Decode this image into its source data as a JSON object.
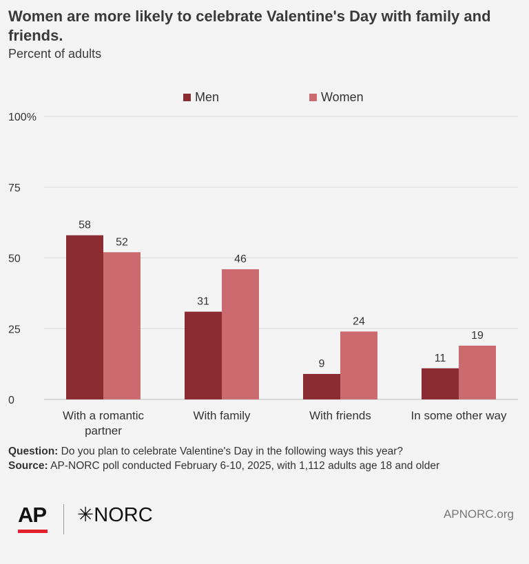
{
  "title": "Women are more likely to celebrate Valentine's Day with family and friends.",
  "subtitle": "Percent of adults",
  "notes": {
    "question_label": "Question:",
    "question_text": " Do you plan to celebrate Valentine's Day in the following ways this year?",
    "source_label": "Source:",
    "source_text": " AP-NORC poll conducted February 6-10, 2025, with 1,112 adults age 18 and older"
  },
  "footer": {
    "logo_ap": "AP",
    "logo_norc": "✳NORC",
    "url": "APNORC.org"
  },
  "colors": {
    "men": "#8b2c33",
    "women": "#cc6b6f",
    "grid": "#d9d9d9",
    "background": "#f4f4f4"
  },
  "chart_data": {
    "type": "bar",
    "categories": [
      "With a romantic partner",
      "With family",
      "With friends",
      "In some other way"
    ],
    "category_lines": [
      [
        "With a romantic",
        "partner"
      ],
      [
        "With family"
      ],
      [
        "With friends"
      ],
      [
        "In some other way"
      ]
    ],
    "series": [
      {
        "name": "Men",
        "values": [
          58,
          31,
          9,
          11
        ]
      },
      {
        "name": "Women",
        "values": [
          52,
          46,
          24,
          19
        ]
      }
    ],
    "ylim": [
      0,
      100
    ],
    "yticks": [
      "0",
      "25",
      "50",
      "75",
      "100%"
    ],
    "ytick_values": [
      0,
      25,
      50,
      75,
      100
    ],
    "grid": true,
    "legend": "top-center",
    "data_labels": true
  }
}
